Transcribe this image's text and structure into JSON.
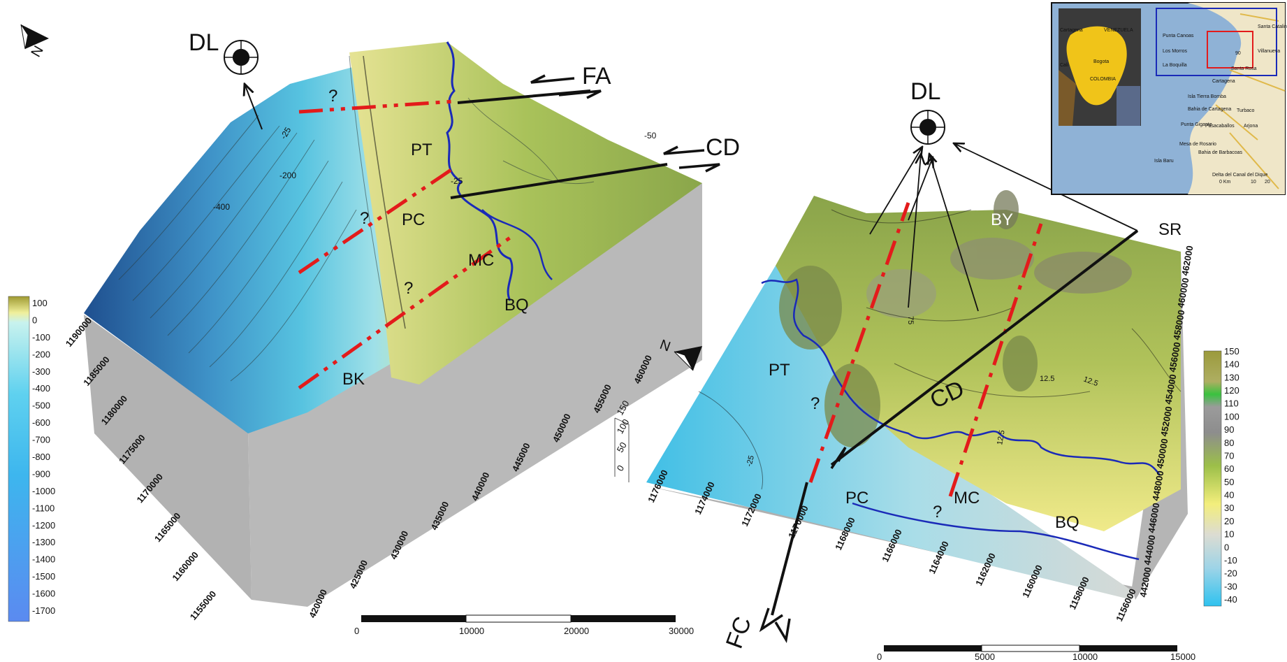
{
  "left_block": {
    "labels": {
      "dl": "DL",
      "fa": "FA",
      "cd": "CD",
      "pt": "PT",
      "pc": "PC",
      "mc": "MC",
      "bq": "BQ",
      "bk": "BK",
      "q": "?"
    },
    "contour_labels": [
      "-25",
      "-200",
      "-400",
      "-50",
      "-25"
    ],
    "y_ticks": [
      "1190000",
      "1185000",
      "1180000",
      "1175000",
      "1170000",
      "1165000",
      "1160000",
      "1155000"
    ],
    "x_ticks": [
      "420000",
      "425000",
      "430000",
      "435000",
      "440000",
      "445000",
      "450000",
      "455000",
      "460000"
    ],
    "north": "N",
    "scale": {
      "labels": [
        "0",
        "10000",
        "20000",
        "30000"
      ]
    }
  },
  "left_legend": {
    "values": [
      "100",
      "0",
      "-100",
      "-200",
      "-300",
      "-400",
      "-500",
      "-600",
      "-700",
      "-800",
      "-900",
      "-1000",
      "-1100",
      "-1200",
      "-1300",
      "-1400",
      "-1500",
      "-1600",
      "-1700"
    ]
  },
  "right_block": {
    "labels": {
      "dl": "DL",
      "by": "BY",
      "sr": "SR",
      "pt": "PT",
      "cd": "CD",
      "pc": "PC",
      "mc": "MC",
      "bq": "BQ",
      "fc": "FC",
      "q": "?"
    },
    "contour_labels": [
      "75",
      "12.5",
      "12.5",
      "12.5",
      "-25"
    ],
    "y_ticks": [
      "1176000",
      "1174000",
      "1172000",
      "1170000",
      "1168000",
      "1166000",
      "1164000",
      "1162000",
      "1160000",
      "1158000",
      "1156000"
    ],
    "x_ticks": [
      "442000",
      "444000",
      "446000",
      "448000",
      "450000",
      "452000",
      "454000",
      "456000",
      "458000",
      "460000",
      "462000"
    ],
    "z_ticks": [
      "150",
      "100",
      "50",
      "0"
    ],
    "north": "N",
    "scale": {
      "labels": [
        "0",
        "5000",
        "10000",
        "15000"
      ]
    }
  },
  "right_legend": {
    "values": [
      "150",
      "140",
      "130",
      "120",
      "110",
      "100",
      "90",
      "80",
      "70",
      "60",
      "50",
      "40",
      "30",
      "20",
      "10",
      "0",
      "-10",
      "-20",
      "-30",
      "-40"
    ]
  },
  "inset": {
    "labels": [
      "Cartagena",
      "VENEZUELA",
      "Cali",
      "Bogota",
      "COLOMBIA",
      "Punta Canoas",
      "Los Morros",
      "La Boquilla",
      "Cartagena",
      "Isla Tierra Bomba",
      "Bahia de Cartagena",
      "Punta Gigante",
      "Pasacaballos",
      "Mesa de Rosario",
      "Isla Baru",
      "Bahia de Barbacoas",
      "Turbaco",
      "Arjona",
      "Santa Rosa",
      "Villanueva",
      "Santa Catalina",
      "Delta del Canal del Dique",
      "0 Km",
      "10",
      "20",
      "90"
    ]
  },
  "colors": {
    "fault_red": "#e31b1b",
    "shore_blue": "#1a2ab8",
    "box_gray": "#b9b9b9"
  }
}
